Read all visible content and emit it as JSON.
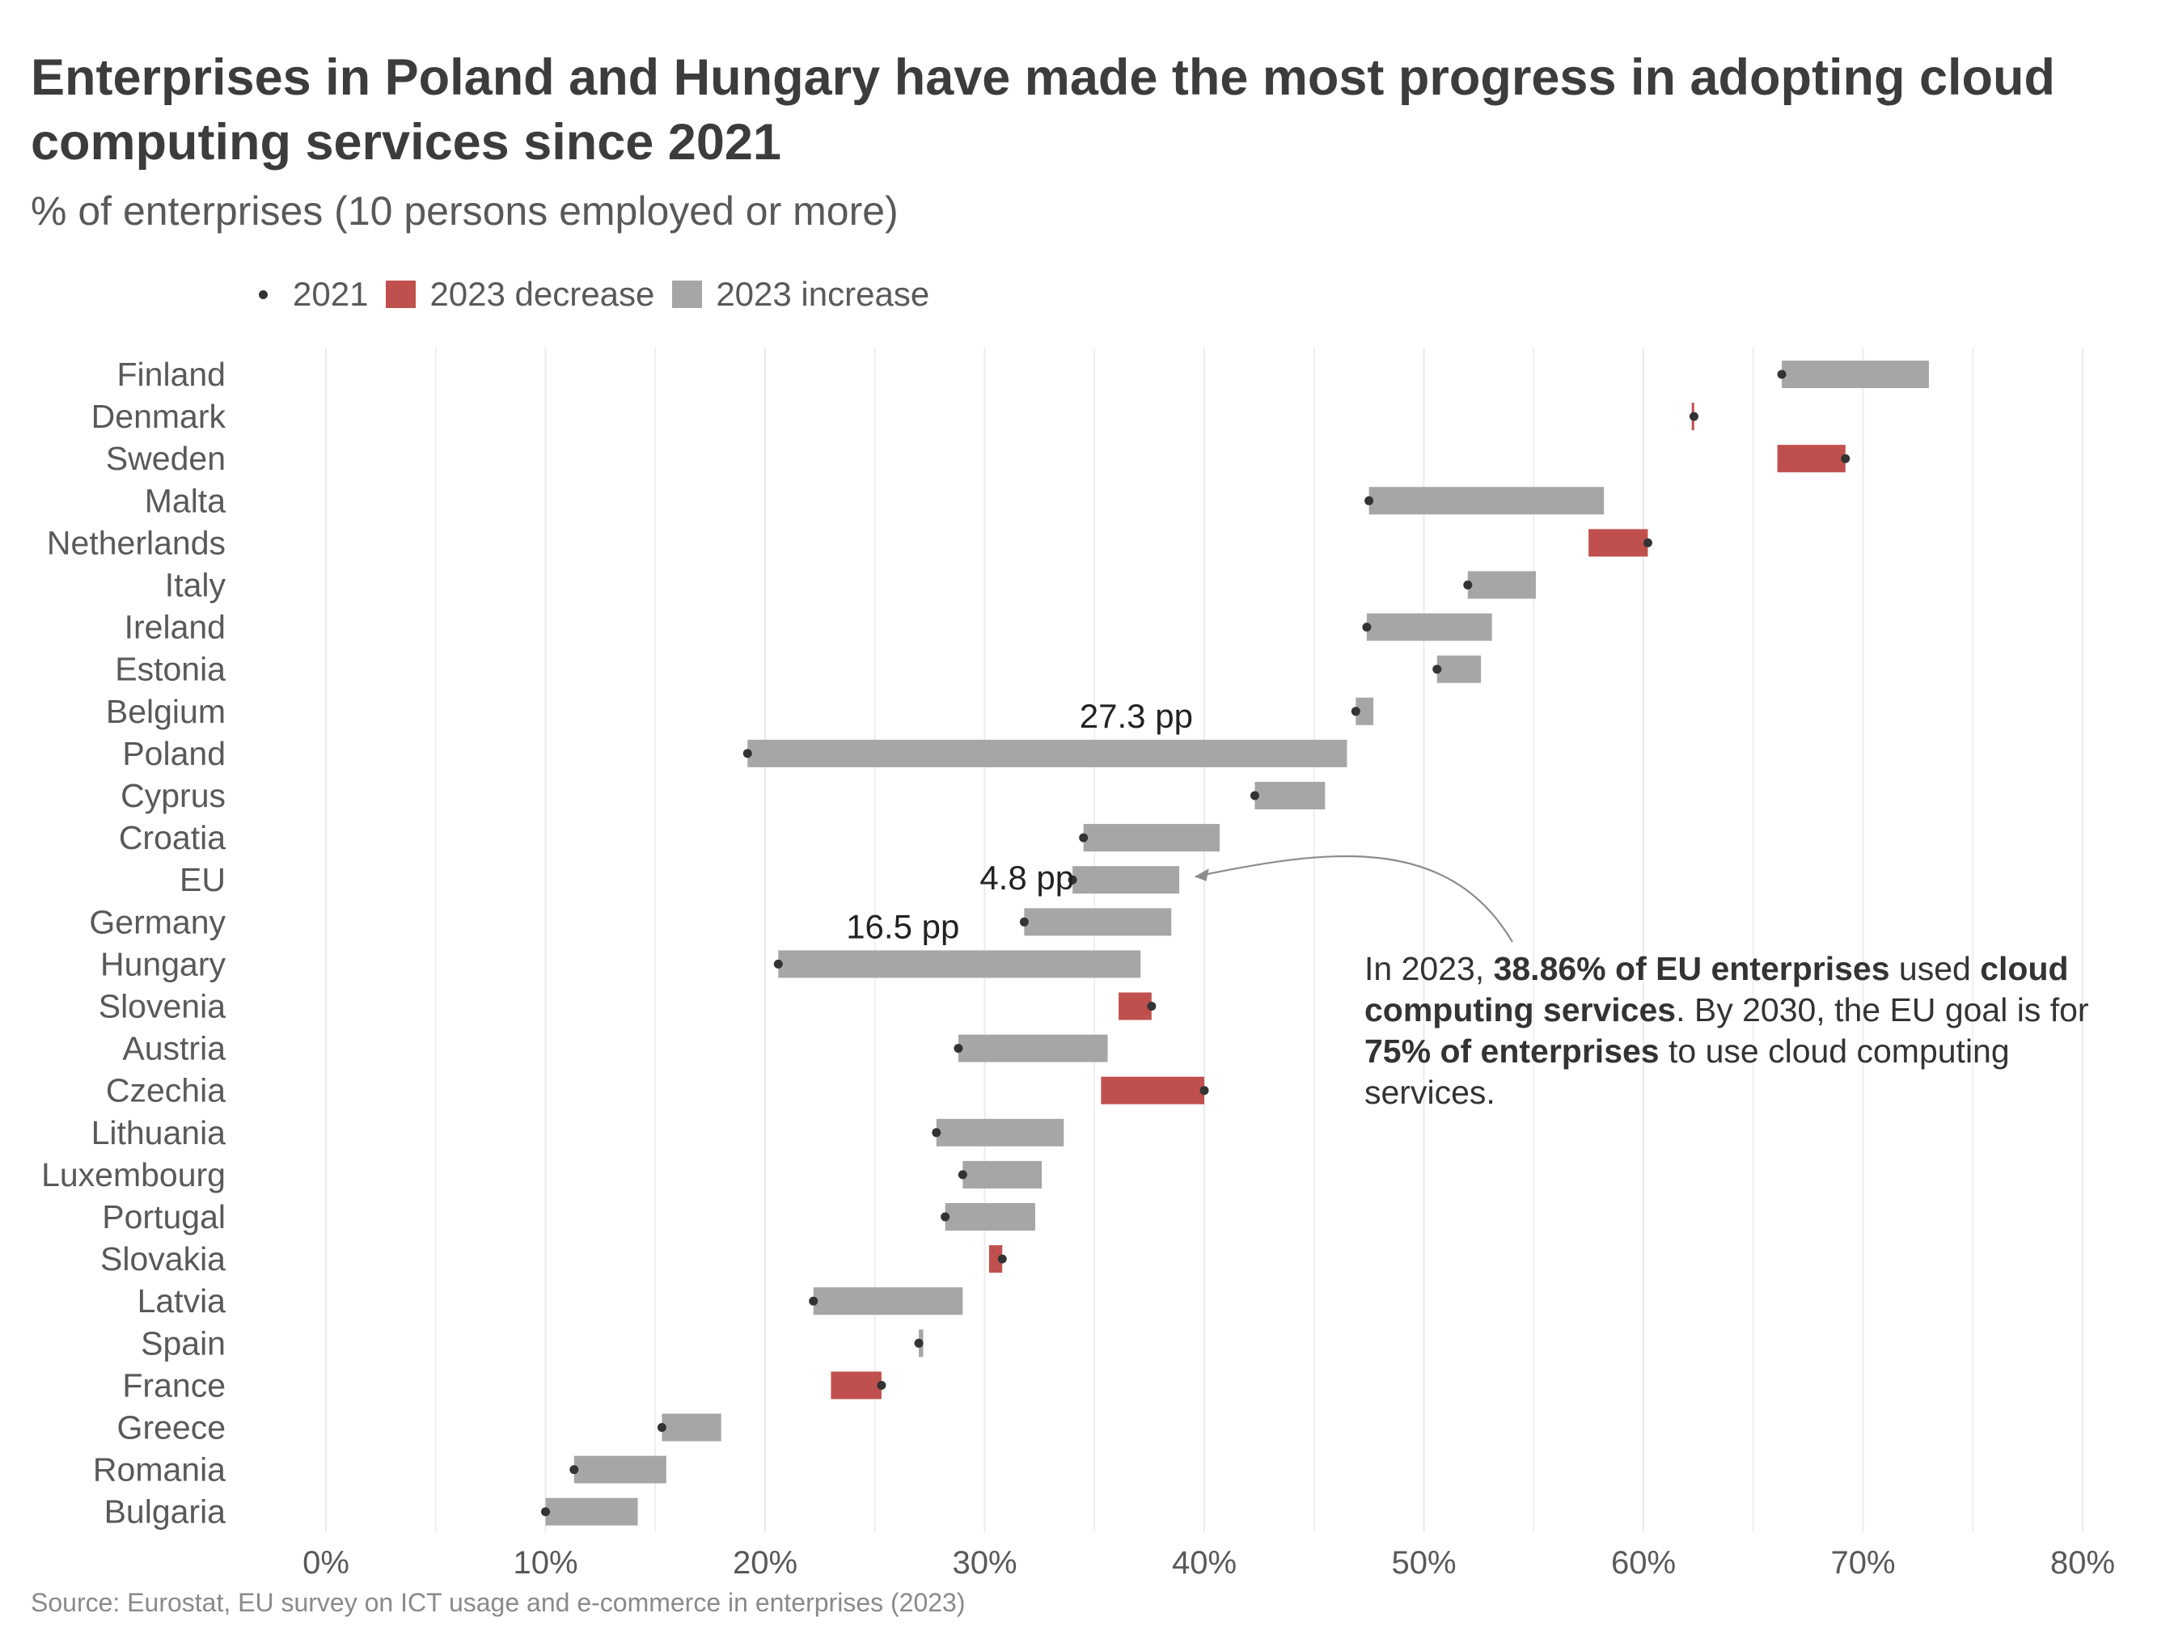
{
  "title": "Enterprises in Poland and Hungary have made the most progress in adopting cloud computing services since 2021",
  "subtitle": "% of enterprises (10 persons employed or more)",
  "legend": {
    "y2021": "2021",
    "decrease": "2023 decrease",
    "increase": "2023 increase"
  },
  "source": "Source: Eurostat, EU survey on ICT usage and e-commerce in enterprises (2023)",
  "annotation": {
    "part1": "In 2023, ",
    "bold1": "38.86% of EU enterprises",
    "part2": " used ",
    "bold2": "cloud computing services",
    "part3": ". By 2030, the EU goal is for ",
    "bold3": "75% of enterprises",
    "part4": " to use cloud computing services."
  },
  "colors": {
    "increase": "#a6a6a6",
    "decrease": "#c0504d",
    "dot": "#333333",
    "grid": "#ebebeb"
  },
  "chart_data": {
    "type": "dumbbell-bar",
    "xlim": [
      0,
      80
    ],
    "xticks": [
      "0%",
      "10%",
      "20%",
      "30%",
      "40%",
      "50%",
      "60%",
      "70%",
      "80%"
    ],
    "grid": true,
    "legend_position": "top",
    "countries": [
      {
        "name": "Finland",
        "y2021": 66.3,
        "y2023": 73.0
      },
      {
        "name": "Denmark",
        "y2021": 62.3,
        "y2023": 62.2
      },
      {
        "name": "Sweden",
        "y2021": 69.2,
        "y2023": 66.1
      },
      {
        "name": "Malta",
        "y2021": 47.5,
        "y2023": 58.2
      },
      {
        "name": "Netherlands",
        "y2021": 60.2,
        "y2023": 57.5
      },
      {
        "name": "Italy",
        "y2021": 52.0,
        "y2023": 55.1
      },
      {
        "name": "Ireland",
        "y2021": 47.4,
        "y2023": 53.1
      },
      {
        "name": "Estonia",
        "y2021": 50.6,
        "y2023": 52.6
      },
      {
        "name": "Belgium",
        "y2021": 46.9,
        "y2023": 47.7
      },
      {
        "name": "Poland",
        "y2021": 19.2,
        "y2023": 46.5,
        "label": "27.3 pp"
      },
      {
        "name": "Cyprus",
        "y2021": 42.3,
        "y2023": 45.5
      },
      {
        "name": "Croatia",
        "y2021": 34.5,
        "y2023": 40.7
      },
      {
        "name": "EU",
        "y2021": 34.0,
        "y2023": 38.86,
        "label": "4.8 pp"
      },
      {
        "name": "Germany",
        "y2021": 31.8,
        "y2023": 38.5
      },
      {
        "name": "Hungary",
        "y2021": 20.6,
        "y2023": 37.1,
        "label": "16.5 pp"
      },
      {
        "name": "Slovenia",
        "y2021": 37.6,
        "y2023": 36.1
      },
      {
        "name": "Austria",
        "y2021": 28.8,
        "y2023": 35.6
      },
      {
        "name": "Czechia",
        "y2021": 40.0,
        "y2023": 35.3
      },
      {
        "name": "Lithuania",
        "y2021": 27.8,
        "y2023": 33.6
      },
      {
        "name": "Luxembourg",
        "y2021": 29.0,
        "y2023": 32.6
      },
      {
        "name": "Portugal",
        "y2021": 28.2,
        "y2023": 32.3
      },
      {
        "name": "Slovakia",
        "y2021": 30.8,
        "y2023": 30.2
      },
      {
        "name": "Latvia",
        "y2021": 22.2,
        "y2023": 29.0
      },
      {
        "name": "Spain",
        "y2021": 27.0,
        "y2023": 27.2
      },
      {
        "name": "France",
        "y2021": 25.3,
        "y2023": 23.0
      },
      {
        "name": "Greece",
        "y2021": 15.3,
        "y2023": 18.0
      },
      {
        "name": "Romania",
        "y2021": 11.3,
        "y2023": 15.5
      },
      {
        "name": "Bulgaria",
        "y2021": 10.0,
        "y2023": 14.2
      }
    ]
  }
}
